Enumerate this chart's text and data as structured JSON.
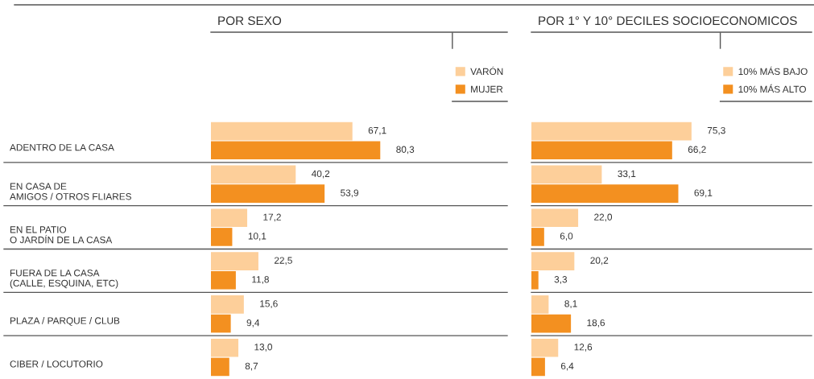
{
  "chart_data": [
    {
      "type": "bar",
      "orientation": "horizontal",
      "title": "POR SEXO",
      "categories": [
        "ADENTRO DE LA CASA",
        "EN CASA DE\nAMIGOS / OTROS FLIARES",
        "EN EL PATIO\nO JARDÍN DE LA CASA",
        "FUERA DE LA CASA\n(CALLE, ESQUINA, ETC)",
        "PLAZA / PARQUE / CLUB",
        "CIBER / LOCUTORIO"
      ],
      "series": [
        {
          "name": "VARÓN",
          "color": "#fdcf9a",
          "values": [
            67.1,
            40.2,
            17.2,
            22.5,
            15.6,
            13.0
          ],
          "value_labels": [
            "67,1",
            "40,2",
            "17,2",
            "22,5",
            "15,6",
            "13,0"
          ]
        },
        {
          "name": "MUJER",
          "color": "#f39020",
          "values": [
            80.3,
            53.9,
            10.1,
            11.8,
            9.4,
            8.7
          ],
          "value_labels": [
            "80,3",
            "53,9",
            "10,1",
            "11,8",
            "9,4",
            "8,7"
          ]
        }
      ],
      "legend": "top right",
      "tick_labels": "y"
    },
    {
      "type": "bar",
      "orientation": "horizontal",
      "title": "POR 1° Y 10° DECILES SOCIOECONOMICOS",
      "categories": [
        null,
        null,
        null,
        null,
        null,
        null
      ],
      "series": [
        {
          "name": "10% MÁS BAJO",
          "color": "#fdcf9a",
          "values": [
            75.3,
            33.1,
            22.0,
            20.2,
            8.1,
            12.6
          ],
          "value_labels": [
            "75,3",
            "33,1",
            "22,0",
            "20,2",
            "8,1",
            "12,6"
          ]
        },
        {
          "name": "10% MÁS ALTO",
          "color": "#f39020",
          "values": [
            66.2,
            69.1,
            6.0,
            3.3,
            18.6,
            6.4
          ],
          "value_labels": [
            "66,2",
            "69,1",
            "6,0",
            "3,3",
            "18,6",
            "6,4"
          ]
        }
      ],
      "legend": "top right",
      "tick_labels": false
    }
  ]
}
